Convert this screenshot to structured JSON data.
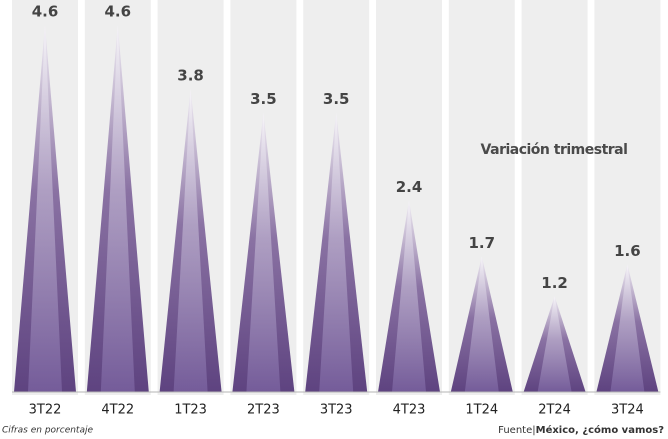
{
  "chart_data": {
    "type": "triangle-bar",
    "annotation": "Variación trimestral",
    "note": "Cifras en porcentaje",
    "source": {
      "label": "Fuente|",
      "name": "México, ¿cómo vamos?"
    },
    "categories": [
      "3T22",
      "4T22",
      "1T23",
      "2T23",
      "3T23",
      "4T23",
      "1T24",
      "2T24",
      "3T24"
    ],
    "values": [
      4.6,
      4.6,
      3.8,
      3.5,
      3.5,
      2.4,
      1.7,
      1.2,
      1.6
    ],
    "color": "#5e4380",
    "ylim": [
      0,
      4.8
    ]
  }
}
